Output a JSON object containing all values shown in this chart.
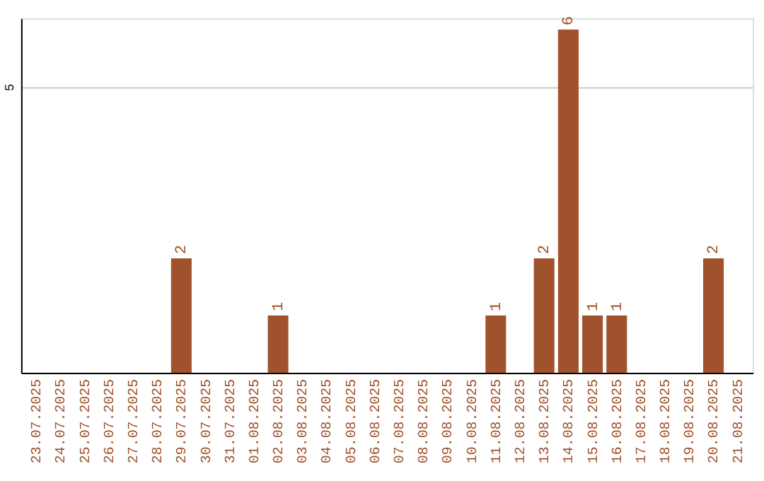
{
  "chart_data": {
    "type": "bar",
    "categories": [
      "23.07.2025",
      "24.07.2025",
      "25.07.2025",
      "26.07.2025",
      "27.07.2025",
      "28.07.2025",
      "29.07.2025",
      "30.07.2025",
      "31.07.2025",
      "01.08.2025",
      "02.08.2025",
      "03.08.2025",
      "04.08.2025",
      "05.08.2025",
      "06.08.2025",
      "07.08.2025",
      "08.08.2025",
      "09.08.2025",
      "10.08.2025",
      "11.08.2025",
      "12.08.2025",
      "13.08.2025",
      "14.08.2025",
      "15.08.2025",
      "16.08.2025",
      "17.08.2025",
      "18.08.2025",
      "19.08.2025",
      "20.08.2025",
      "21.08.2025"
    ],
    "values": [
      0,
      0,
      0,
      0,
      0,
      0,
      2,
      0,
      0,
      0,
      1,
      0,
      0,
      0,
      0,
      0,
      0,
      0,
      0,
      1,
      0,
      2,
      6,
      1,
      1,
      0,
      0,
      0,
      2,
      0
    ],
    "value_labels": [
      null,
      null,
      null,
      null,
      null,
      null,
      "2",
      null,
      null,
      null,
      "1",
      null,
      null,
      null,
      null,
      null,
      null,
      null,
      null,
      "1",
      null,
      "2",
      "6",
      "1",
      "1",
      null,
      null,
      null,
      "2",
      null
    ],
    "color": "#a0522d",
    "ylim": [
      0,
      6.2
    ],
    "yticks": [
      5
    ],
    "grid": "y"
  }
}
